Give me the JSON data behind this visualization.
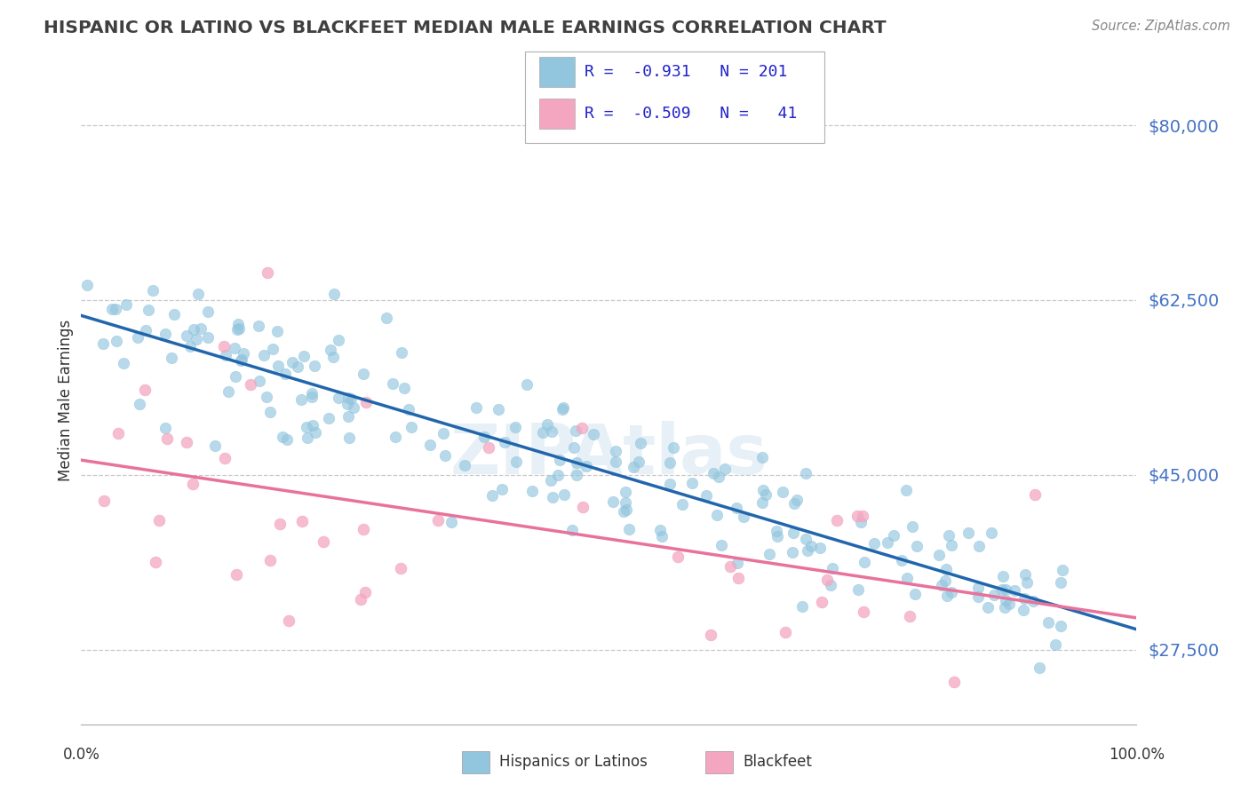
{
  "title": "HISPANIC OR LATINO VS BLACKFEET MEDIAN MALE EARNINGS CORRELATION CHART",
  "source": "Source: ZipAtlas.com",
  "ylabel": "Median Male Earnings",
  "yticks": [
    27500,
    45000,
    62500,
    80000
  ],
  "ytick_labels": [
    "$27,500",
    "$45,000",
    "$62,500",
    "$80,000"
  ],
  "ymin": 20000,
  "ymax": 85000,
  "xmin": 0.0,
  "xmax": 100.0,
  "blue_color": "#92c5de",
  "pink_color": "#f4a6c0",
  "blue_line_color": "#2166ac",
  "pink_line_color": "#e8729a",
  "title_color": "#404040",
  "ytick_color": "#4472c4",
  "legend_text_color": "#2222cc",
  "watermark": "ZIPAtlas",
  "blue_R": -0.931,
  "blue_N": 201,
  "pink_R": -0.509,
  "pink_N": 41,
  "blue_intercept": 62000,
  "blue_slope": -330,
  "pink_intercept": 45000,
  "pink_slope": -170,
  "blue_scatter_std": 3500,
  "pink_scatter_std": 8000
}
